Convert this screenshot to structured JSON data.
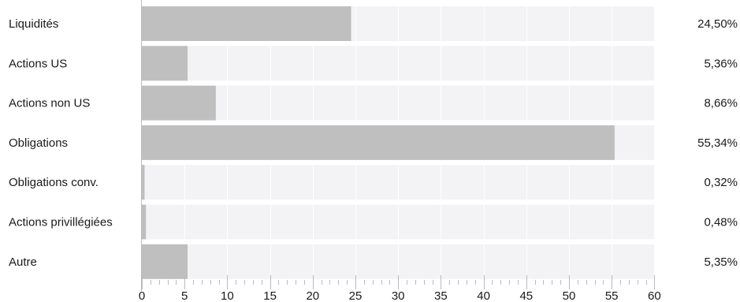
{
  "chart_data": {
    "type": "bar",
    "orientation": "horizontal",
    "categories": [
      "Liquidités",
      "Actions US",
      "Actions non US",
      "Obligations",
      "Obligations conv.",
      "Actions privillégiées",
      "Autre"
    ],
    "values": [
      24.5,
      5.36,
      8.66,
      55.34,
      0.32,
      0.48,
      5.35
    ],
    "value_labels": [
      "24,50%",
      "5,36%",
      "8,66%",
      "55,34%",
      "0,32%",
      "0,48%",
      "5,35%"
    ],
    "xlim": [
      0,
      60
    ],
    "xticks": [
      0,
      5,
      10,
      15,
      20,
      25,
      30,
      35,
      40,
      45,
      50,
      55,
      60
    ],
    "grid": true,
    "colors": {
      "bar": "#c0bfbf",
      "band": "#f3f3f5",
      "grid": "#ffffff",
      "axis": "#bbbbbb",
      "text": "#1a1a1a"
    }
  }
}
